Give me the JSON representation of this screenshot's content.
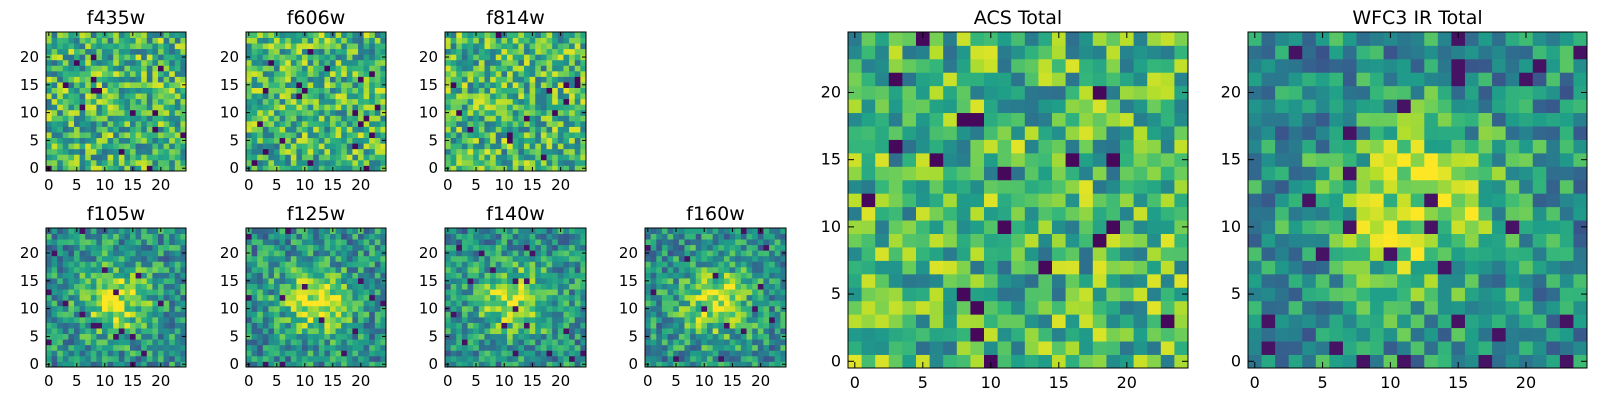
{
  "figure": {
    "background": "#ffffff"
  },
  "chart_data": [
    {
      "type": "heatmap",
      "title": "f435w",
      "pattern": "noise",
      "x_ticks": [
        0,
        5,
        10,
        15,
        20
      ],
      "y_ticks": [
        0,
        5,
        10,
        15,
        20
      ],
      "xlim": [
        -0.5,
        24.5
      ],
      "ylim": [
        -0.5,
        24.5
      ],
      "grid_size": [
        25,
        25
      ],
      "colormap": "viridis"
    },
    {
      "type": "heatmap",
      "title": "f606w",
      "pattern": "noise",
      "x_ticks": [
        0,
        5,
        10,
        15,
        20
      ],
      "y_ticks": [
        0,
        5,
        10,
        15,
        20
      ],
      "xlim": [
        -0.5,
        24.5
      ],
      "ylim": [
        -0.5,
        24.5
      ],
      "grid_size": [
        25,
        25
      ],
      "colormap": "viridis"
    },
    {
      "type": "heatmap",
      "title": "f814w",
      "pattern": "noise",
      "x_ticks": [
        0,
        5,
        10,
        15,
        20
      ],
      "y_ticks": [
        0,
        5,
        10,
        15,
        20
      ],
      "xlim": [
        -0.5,
        24.5
      ],
      "ylim": [
        -0.5,
        24.5
      ],
      "grid_size": [
        25,
        25
      ],
      "colormap": "viridis"
    },
    {
      "type": "heatmap",
      "title": "f105w",
      "pattern": "central source",
      "x_ticks": [
        0,
        5,
        10,
        15,
        20
      ],
      "y_ticks": [
        0,
        5,
        10,
        15,
        20
      ],
      "xlim": [
        -0.5,
        24.5
      ],
      "ylim": [
        -0.5,
        24.5
      ],
      "grid_size": [
        25,
        25
      ],
      "colormap": "viridis"
    },
    {
      "type": "heatmap",
      "title": "f125w",
      "pattern": "central source",
      "x_ticks": [
        0,
        5,
        10,
        15,
        20
      ],
      "y_ticks": [
        0,
        5,
        10,
        15,
        20
      ],
      "xlim": [
        -0.5,
        24.5
      ],
      "ylim": [
        -0.5,
        24.5
      ],
      "grid_size": [
        25,
        25
      ],
      "colormap": "viridis"
    },
    {
      "type": "heatmap",
      "title": "f140w",
      "pattern": "central source",
      "x_ticks": [
        0,
        5,
        10,
        15,
        20
      ],
      "y_ticks": [
        0,
        5,
        10,
        15,
        20
      ],
      "xlim": [
        -0.5,
        24.5
      ],
      "ylim": [
        -0.5,
        24.5
      ],
      "grid_size": [
        25,
        25
      ],
      "colormap": "viridis"
    },
    {
      "type": "heatmap",
      "title": "f160w",
      "pattern": "central source",
      "x_ticks": [
        0,
        5,
        10,
        15,
        20
      ],
      "y_ticks": [
        0,
        5,
        10,
        15,
        20
      ],
      "xlim": [
        -0.5,
        24.5
      ],
      "ylim": [
        -0.5,
        24.5
      ],
      "grid_size": [
        25,
        25
      ],
      "colormap": "viridis"
    },
    {
      "type": "heatmap",
      "title": "ACS Total",
      "pattern": "noise",
      "x_ticks": [
        0,
        5,
        10,
        15,
        20
      ],
      "y_ticks": [
        0,
        5,
        10,
        15,
        20
      ],
      "xlim": [
        -0.5,
        24.5
      ],
      "ylim": [
        -0.5,
        24.5
      ],
      "grid_size": [
        25,
        25
      ],
      "colormap": "viridis"
    },
    {
      "type": "heatmap",
      "title": "WFC3 IR Total",
      "pattern": "central source",
      "x_ticks": [
        0,
        5,
        10,
        15,
        20
      ],
      "y_ticks": [
        0,
        5,
        10,
        15,
        20
      ],
      "xlim": [
        -0.5,
        24.5
      ],
      "ylim": [
        -0.5,
        24.5
      ],
      "grid_size": [
        25,
        25
      ],
      "colormap": "viridis"
    }
  ]
}
